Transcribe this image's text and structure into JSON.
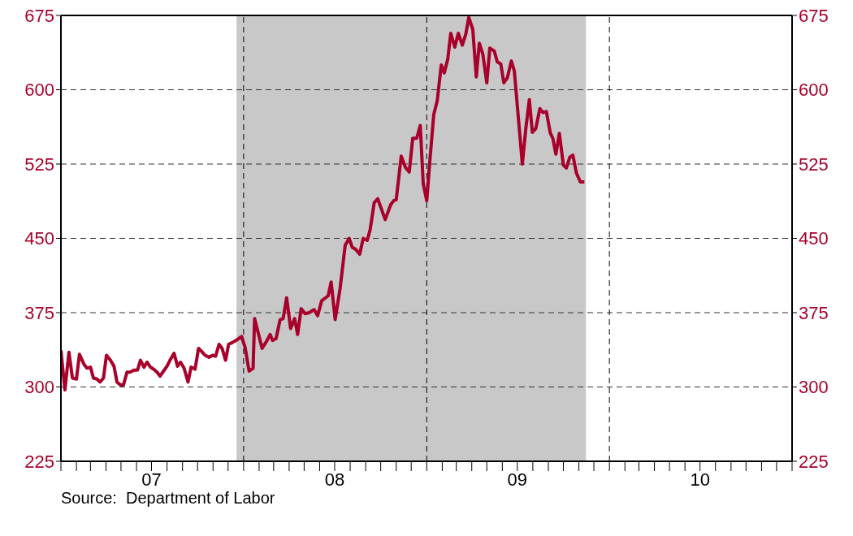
{
  "chart_data": {
    "type": "line",
    "x": [
      "2007-01-01",
      "2007-01-09",
      "2007-01-17",
      "2007-01-24",
      "2007-02-01",
      "2007-02-07",
      "2007-02-16",
      "2007-02-22",
      "2007-03-01",
      "2007-03-07",
      "2007-03-14",
      "2007-03-20",
      "2007-03-27",
      "2007-04-02",
      "2007-04-10",
      "2007-04-17",
      "2007-04-23",
      "2007-04-30",
      "2007-05-06",
      "2007-05-13",
      "2007-05-19",
      "2007-05-27",
      "2007-06-03",
      "2007-06-09",
      "2007-06-16",
      "2007-06-22",
      "2007-06-29",
      "2007-07-05",
      "2007-07-12",
      "2007-07-18",
      "2007-07-25",
      "2007-08-01",
      "2007-08-07",
      "2007-08-15",
      "2007-08-22",
      "2007-08-28",
      "2007-09-04",
      "2007-09-12",
      "2007-09-18",
      "2007-09-26",
      "2007-10-03",
      "2007-10-09",
      "2007-10-16",
      "2007-10-24",
      "2007-10-31",
      "2007-11-06",
      "2007-11-13",
      "2007-11-19",
      "2007-11-26",
      "2007-12-02",
      "2007-12-10",
      "2007-12-20",
      "2007-12-28",
      "2008-01-04",
      "2008-01-12",
      "2008-01-20",
      "2008-01-23",
      "2008-02-07",
      "2008-02-17",
      "2008-02-23",
      "2008-02-28",
      "2008-03-06",
      "2008-03-14",
      "2008-03-20",
      "2008-03-27",
      "2008-04-04",
      "2008-04-12",
      "2008-04-18",
      "2008-04-25",
      "2008-05-03",
      "2008-05-11",
      "2008-05-21",
      "2008-05-28",
      "2008-06-05",
      "2008-06-18",
      "2008-06-24",
      "2008-07-02",
      "2008-07-12",
      "2008-07-22",
      "2008-07-30",
      "2008-08-05",
      "2008-08-12",
      "2008-08-20",
      "2008-08-27",
      "2008-09-04",
      "2008-09-10",
      "2008-09-18",
      "2008-09-25",
      "2008-10-10",
      "2008-10-21",
      "2008-10-27",
      "2008-11-01",
      "2008-11-11",
      "2008-11-19",
      "2008-11-27",
      "2008-12-04",
      "2008-12-12",
      "2008-12-19",
      "2008-12-25",
      "2009-01-01",
      "2009-01-07",
      "2009-01-15",
      "2009-01-22",
      "2009-01-30",
      "2009-02-05",
      "2009-02-12",
      "2009-02-18",
      "2009-02-26",
      "2009-03-05",
      "2009-03-13",
      "2009-03-20",
      "2009-03-26",
      "2009-04-03",
      "2009-04-10",
      "2009-04-16",
      "2009-04-23",
      "2009-05-01",
      "2009-05-07",
      "2009-05-16",
      "2009-05-22",
      "2009-05-29",
      "2009-06-04",
      "2009-06-11",
      "2009-06-19",
      "2009-06-25",
      "2009-07-03",
      "2009-07-11",
      "2009-07-18",
      "2009-07-25",
      "2009-07-31",
      "2009-08-07",
      "2009-08-15",
      "2009-08-21",
      "2009-08-28",
      "2009-09-05",
      "2009-09-10",
      "2009-09-16",
      "2009-09-23",
      "2009-10-01",
      "2009-10-07",
      "2009-10-14",
      "2009-10-20",
      "2009-10-27",
      "2009-11-04",
      "2009-11-12"
    ],
    "series": [
      {
        "color": "#a8002a",
        "values": [
          337,
          297,
          335,
          309,
          308,
          333,
          323,
          319,
          320,
          309,
          308,
          305,
          309,
          332,
          327,
          321,
          305,
          302,
          302,
          315,
          315,
          317,
          317,
          327,
          320,
          325,
          320,
          318,
          315,
          311,
          316,
          321,
          327,
          334,
          321,
          325,
          319,
          305,
          320,
          318,
          339,
          336,
          332,
          330,
          332,
          331,
          343,
          339,
          327,
          343,
          345,
          348,
          351,
          340,
          316,
          319,
          369,
          339,
          347,
          353,
          347,
          349,
          368,
          369,
          390,
          359,
          369,
          353,
          379,
          374,
          375,
          378,
          372,
          387,
          392,
          406,
          368,
          400,
          443,
          450,
          441,
          439,
          434,
          450,
          448,
          459,
          486,
          490,
          469,
          484,
          488,
          489,
          533,
          522,
          517,
          551,
          551,
          564,
          505,
          488,
          527,
          575,
          589,
          625,
          617,
          631,
          657,
          643,
          657,
          645,
          656,
          673,
          661,
          613,
          647,
          636,
          607,
          642,
          639,
          628,
          626,
          607,
          612,
          629,
          619,
          572,
          525,
          561,
          590,
          557,
          561,
          581,
          577,
          578,
          556,
          551,
          535,
          556,
          524,
          521,
          532,
          534,
          516,
          507,
          507
        ]
      }
    ],
    "xlim": [
      "2007-01-01",
      "2011-01-01"
    ],
    "xticks": [
      {
        "value": "2007-01-01",
        "label": null
      },
      {
        "value": "2007-02-01",
        "label": null
      },
      {
        "value": "2007-03-01",
        "label": null
      },
      {
        "value": "2007-04-01",
        "label": null
      },
      {
        "value": "2007-05-01",
        "label": null
      },
      {
        "value": "2007-06-01",
        "label": null
      },
      {
        "value": "2007-07-01",
        "label": "07"
      },
      {
        "value": "2007-08-01",
        "label": null
      },
      {
        "value": "2007-09-01",
        "label": null
      },
      {
        "value": "2007-10-01",
        "label": null
      },
      {
        "value": "2007-11-01",
        "label": null
      },
      {
        "value": "2007-12-01",
        "label": null
      },
      {
        "value": "2008-01-01",
        "label": null
      },
      {
        "value": "2008-02-01",
        "label": null
      },
      {
        "value": "2008-03-01",
        "label": null
      },
      {
        "value": "2008-04-01",
        "label": null
      },
      {
        "value": "2008-05-01",
        "label": null
      },
      {
        "value": "2008-06-01",
        "label": null
      },
      {
        "value": "2008-07-01",
        "label": "08"
      },
      {
        "value": "2008-08-01",
        "label": null
      },
      {
        "value": "2008-09-01",
        "label": null
      },
      {
        "value": "2008-10-01",
        "label": null
      },
      {
        "value": "2008-11-01",
        "label": null
      },
      {
        "value": "2008-12-01",
        "label": null
      },
      {
        "value": "2009-01-01",
        "label": null
      },
      {
        "value": "2009-02-01",
        "label": null
      },
      {
        "value": "2009-03-01",
        "label": null
      },
      {
        "value": "2009-04-01",
        "label": null
      },
      {
        "value": "2009-05-01",
        "label": null
      },
      {
        "value": "2009-06-01",
        "label": null
      },
      {
        "value": "2009-07-01",
        "label": "09"
      },
      {
        "value": "2009-08-01",
        "label": null
      },
      {
        "value": "2009-09-01",
        "label": null
      },
      {
        "value": "2009-10-01",
        "label": null
      },
      {
        "value": "2009-11-01",
        "label": null
      },
      {
        "value": "2009-12-01",
        "label": null
      },
      {
        "value": "2010-01-01",
        "label": null
      },
      {
        "value": "2010-02-01",
        "label": null
      },
      {
        "value": "2010-03-01",
        "label": null
      },
      {
        "value": "2010-04-01",
        "label": null
      },
      {
        "value": "2010-05-01",
        "label": null
      },
      {
        "value": "2010-06-01",
        "label": null
      },
      {
        "value": "2010-07-01",
        "label": "10"
      },
      {
        "value": "2010-08-01",
        "label": null
      },
      {
        "value": "2010-09-01",
        "label": null
      },
      {
        "value": "2010-10-01",
        "label": null
      },
      {
        "value": "2010-11-01",
        "label": null
      },
      {
        "value": "2010-12-01",
        "label": null
      },
      {
        "value": "2011-01-01",
        "label": null
      }
    ],
    "ylim": [
      225,
      675
    ],
    "yticks": [
      225,
      300,
      375,
      450,
      525,
      600,
      675
    ],
    "y2lim": [
      225,
      675
    ],
    "y2ticks": [
      225,
      300,
      375,
      450,
      525,
      600,
      675
    ],
    "grid": "y",
    "line_style": "solid",
    "marker": "none",
    "legend": false,
    "bands": [
      {
        "axis": "x",
        "from": "2007-12-18",
        "to": "2009-11-15",
        "color": "#c8c8c8"
      }
    ],
    "ref_lines": [
      {
        "axis": "x",
        "value": "2008-01-01",
        "line_style": "dashed"
      },
      {
        "axis": "x",
        "value": "2009-01-01",
        "line_style": "dashed"
      },
      {
        "axis": "x",
        "value": "2010-01-01",
        "line_style": "dashed"
      }
    ],
    "annotations": [
      "Source:  Department of Labor"
    ]
  }
}
